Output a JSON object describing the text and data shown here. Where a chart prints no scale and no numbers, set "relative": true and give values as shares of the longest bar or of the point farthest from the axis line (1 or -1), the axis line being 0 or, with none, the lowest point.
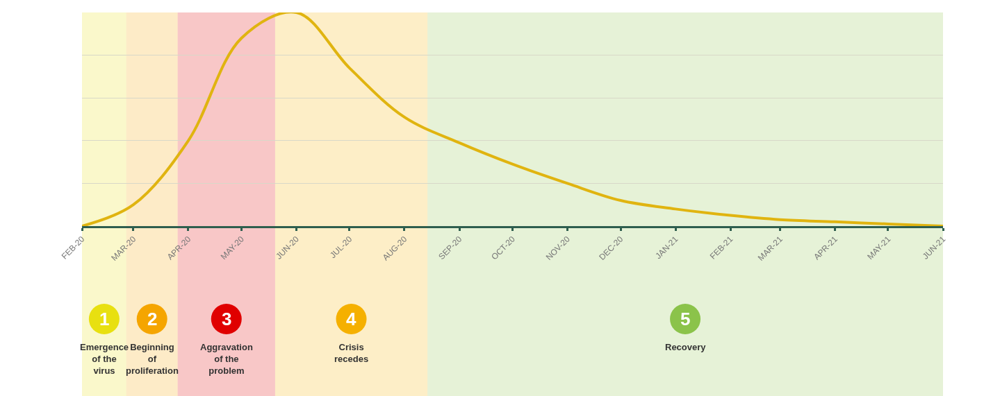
{
  "chart_data": {
    "type": "line",
    "relative": true,
    "grid": "y",
    "marker": "none",
    "line_style": "solid",
    "x": [
      "2020-02",
      "2020-03",
      "2020-04",
      "2020-05",
      "2020-06",
      "2020-07",
      "2020-08",
      "2020-09",
      "2020-10",
      "2020-11",
      "2020-12",
      "2021-01",
      "2021-02",
      "2021-03",
      "2021-04",
      "2021-05",
      "2021-06"
    ],
    "xlim": [
      "2020-02",
      "2021-06"
    ],
    "xticks": [
      {
        "value": "2020-02",
        "label": "FEB-20"
      },
      {
        "value": "2020-03",
        "label": "MAR-20"
      },
      {
        "value": "2020-04",
        "label": "APR-20"
      },
      {
        "value": "2020-05",
        "label": "MAY-20"
      },
      {
        "value": "2020-06",
        "label": "JUN-20"
      },
      {
        "value": "2020-07",
        "label": "JUL-20"
      },
      {
        "value": "2020-08",
        "label": "AUG-20"
      },
      {
        "value": "2020-09",
        "label": "SEP-20"
      },
      {
        "value": "2020-10",
        "label": "OCT-20"
      },
      {
        "value": "2020-11",
        "label": "NOV-20"
      },
      {
        "value": "2020-12",
        "label": "DEC-20"
      },
      {
        "value": "2021-01",
        "label": "JAN-21"
      },
      {
        "value": "2021-02",
        "label": "FEB-21"
      },
      {
        "value": "2021-03",
        "label": "MAR-21"
      },
      {
        "value": "2021-04",
        "label": "APR-21"
      },
      {
        "value": "2021-05",
        "label": "MAY-21"
      },
      {
        "value": "2021-06",
        "label": "JUN-21"
      }
    ],
    "series": [
      {
        "color": "#e0b410",
        "values": [
          0,
          0.1,
          0.4,
          0.88,
          1.0,
          0.74,
          0.51,
          0.39,
          0.29,
          0.2,
          0.12,
          0.08,
          0.05,
          0.03,
          0.02,
          0.01,
          0.0
        ]
      }
    ],
    "bands": [
      {
        "axis": "x",
        "from": "2020-02",
        "to": "2020-02-26",
        "label": "1",
        "color": "#e8e010"
      },
      {
        "axis": "x",
        "from": "2020-02-26",
        "to": "2020-03-26",
        "label": "2",
        "color": "#f5a500"
      },
      {
        "axis": "x",
        "from": "2020-03-26",
        "to": "2020-05-20",
        "label": "3",
        "color": "#e00000"
      },
      {
        "axis": "x",
        "from": "2020-05-20",
        "to": "2020-08-14",
        "label": "4",
        "color": "#f5b000"
      },
      {
        "axis": "x",
        "from": "2020-08-14",
        "to": "2021-06",
        "label": "5",
        "color": "#8bc34a"
      }
    ],
    "annotations": [
      "Emergence of the virus",
      "Beginning of proliferation",
      "Aggravation of the problem",
      "Crisis recedes",
      "Recovery"
    ]
  }
}
